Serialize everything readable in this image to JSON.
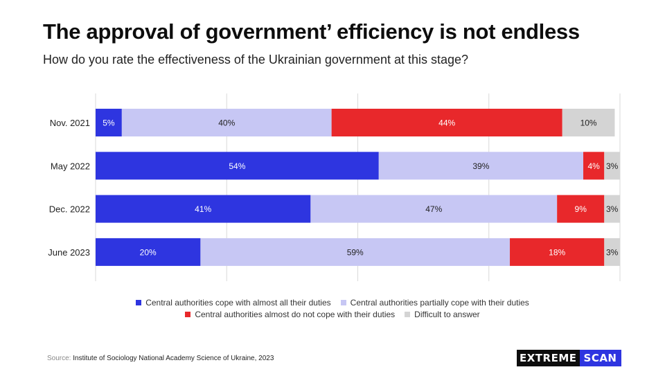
{
  "title": "The approval of government’ efficiency is not endless",
  "subtitle": "How do you rate the effectiveness of the Ukrainian government at this stage?",
  "chart_data": {
    "type": "bar",
    "orientation": "horizontal",
    "stacked": true,
    "categories": [
      "Nov. 2021",
      "May 2022",
      "Dec. 2022",
      "June 2023"
    ],
    "series": [
      {
        "name": "Central authorities cope with almost all their duties",
        "color": "#2e35e0",
        "label_color": "#ffffff",
        "values": [
          5,
          54,
          41,
          20
        ],
        "labels": [
          "5%",
          "54%",
          "41%",
          "20%"
        ]
      },
      {
        "name": "Central authorities partially cope with their duties",
        "color": "#c7c7f4",
        "label_color": "#222222",
        "values": [
          40,
          39,
          47,
          59
        ],
        "labels": [
          "40%",
          "39%",
          "47%",
          "59%"
        ]
      },
      {
        "name": "Central authorities almost do not cope with their duties",
        "color": "#e8282b",
        "label_color": "#ffffff",
        "values": [
          44,
          4,
          9,
          18
        ],
        "labels": [
          "44%",
          "4%",
          "9%",
          "18%"
        ]
      },
      {
        "name": "Difficult to answer",
        "color": "#d4d4d4",
        "label_color": "#222222",
        "values": [
          10,
          3,
          3,
          3
        ],
        "labels": [
          "10%",
          "3%",
          "3%",
          "3%"
        ]
      }
    ],
    "xlim": [
      0,
      100
    ],
    "grid": true,
    "legend_position": "bottom"
  },
  "source": {
    "label": "Source:",
    "text": "Institute of Sociology National Academy Science of Ukraine, 2023"
  },
  "brand": {
    "part1": "EXTREME",
    "part2": "SCAN"
  }
}
